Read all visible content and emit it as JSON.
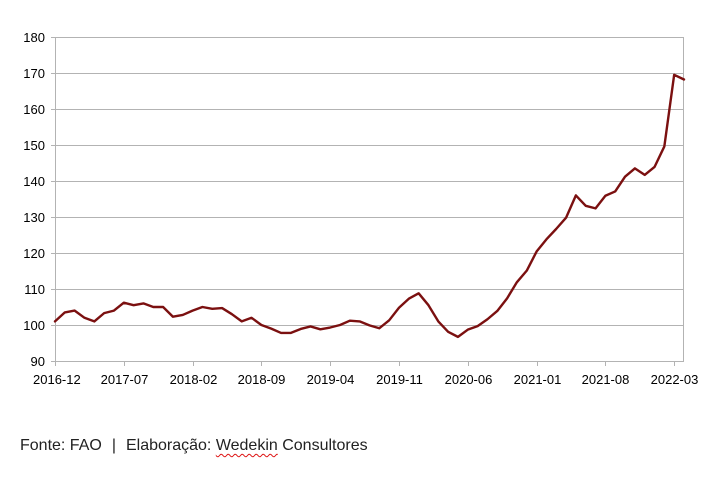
{
  "chart_data": {
    "type": "line",
    "title": "",
    "xlabel": "",
    "ylabel": "",
    "ylim": [
      90,
      180
    ],
    "yticks": [
      90,
      100,
      110,
      120,
      130,
      140,
      150,
      160,
      170,
      180
    ],
    "xtick_labels": [
      "2016-12",
      "2017-07",
      "2018-02",
      "2018-09",
      "2019-04",
      "2019-11",
      "2020-06",
      "2021-01",
      "2021-08",
      "2022-03"
    ],
    "grid": "horizontal",
    "legend": "none",
    "line_color": "#7b1010",
    "x": [
      "2016-12",
      "2017-01",
      "2017-02",
      "2017-03",
      "2017-04",
      "2017-05",
      "2017-06",
      "2017-07",
      "2017-08",
      "2017-09",
      "2017-10",
      "2017-11",
      "2017-12",
      "2018-01",
      "2018-02",
      "2018-03",
      "2018-04",
      "2018-05",
      "2018-06",
      "2018-07",
      "2018-08",
      "2018-09",
      "2018-10",
      "2018-11",
      "2018-12",
      "2019-01",
      "2019-02",
      "2019-03",
      "2019-04",
      "2019-05",
      "2019-06",
      "2019-07",
      "2019-08",
      "2019-09",
      "2019-10",
      "2019-11",
      "2019-12",
      "2020-01",
      "2020-02",
      "2020-03",
      "2020-04",
      "2020-05",
      "2020-06",
      "2020-07",
      "2020-08",
      "2020-09",
      "2020-10",
      "2020-11",
      "2020-12",
      "2021-01",
      "2021-02",
      "2021-03",
      "2021-04",
      "2021-05",
      "2021-06",
      "2021-07",
      "2021-08",
      "2021-09",
      "2021-10",
      "2021-11",
      "2021-12",
      "2022-01",
      "2022-02",
      "2022-03",
      "2022-04"
    ],
    "series": [
      {
        "values": [
          101,
          103.5,
          104,
          102,
          101,
          103.3,
          104,
          106.2,
          105.5,
          106,
          105,
          105,
          102.3,
          102.8,
          104,
          105,
          104.5,
          104.7,
          103,
          101,
          102,
          100,
          99,
          97.8,
          97.8,
          98.9,
          99.6,
          98.8,
          99.3,
          100,
          101.2,
          101,
          99.9,
          99.1,
          101.3,
          104.8,
          107.3,
          108.8,
          105.5,
          101,
          98.1,
          96.7,
          98.7,
          99.7,
          101.6,
          103.9,
          107.4,
          111.9,
          115.1,
          120.4,
          123.8,
          126.7,
          129.8,
          136,
          133.1,
          132.4,
          135.9,
          137.1,
          141.2,
          143.5,
          141.7,
          143.9,
          149.6,
          169.5,
          168.2
        ]
      }
    ]
  },
  "footer": {
    "source": "Fonte: FAO",
    "separator": "|",
    "credit_prefix": "Elaboração: ",
    "credit_name_underlined": "Wedekin",
    "credit_name_rest": " Consultores"
  }
}
